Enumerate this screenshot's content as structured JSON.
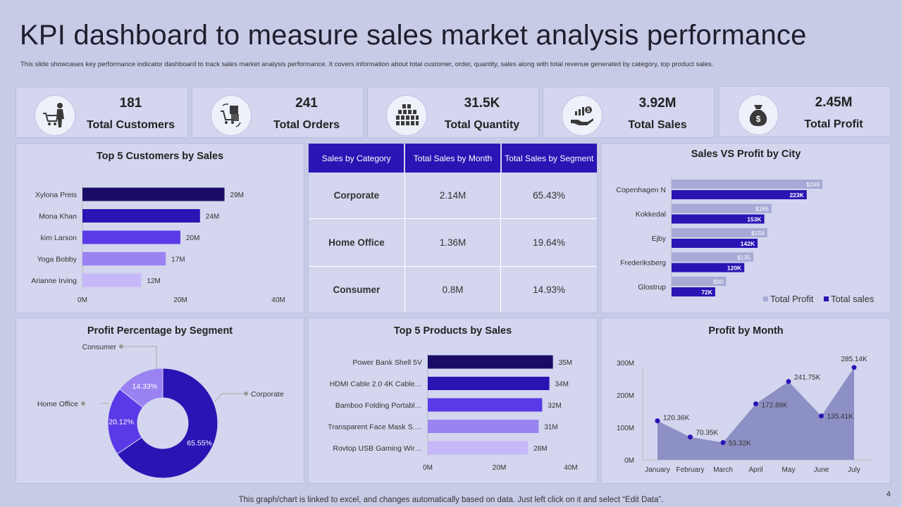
{
  "header": {
    "title": "KPI dashboard to measure sales market analysis performance",
    "subtitle": "This slide showcases key performance indicator dashboard to track sales market analysis performance. It covers information about total customer, order, quantity, sales along  with total revenue generated by category, top product sales."
  },
  "kpis": [
    {
      "value": "181",
      "label": "Total Customers",
      "icon": "customer-cart-icon"
    },
    {
      "value": "241",
      "label": "Total Orders",
      "icon": "orders-boxes-icon"
    },
    {
      "value": "31.5K",
      "label": "Total Quantity",
      "icon": "stacked-boxes-icon"
    },
    {
      "value": "3.92M",
      "label": "Total Sales",
      "icon": "sales-hand-coin-icon"
    },
    {
      "value": "2.45M",
      "label": "Total Profit",
      "icon": "money-bag-icon"
    }
  ],
  "segment_table": {
    "headers": [
      "Sales by Category",
      "Total Sales by Month",
      "Total Sales by Segment"
    ],
    "rows": [
      [
        "Corporate",
        "2.14M",
        "65.43%"
      ],
      [
        "Home Office",
        "1.36M",
        "19.64%"
      ],
      [
        "Consumer",
        "0.8M",
        "14.93%"
      ]
    ]
  },
  "colors": {
    "dark": "#1a0b66",
    "primary": "#2a14b4",
    "medium": "#5a3ae6",
    "light": "#9a82f2",
    "lighter": "#c6b8f8",
    "profit_gray": "#a7aad6",
    "panel": "#d3d6ee",
    "background": "#c8cbe6"
  },
  "chart_data": [
    {
      "id": "top5_customers",
      "type": "bar",
      "orientation": "horizontal",
      "title": "Top 5 Customers by Sales",
      "categories": [
        "Xylona Preis",
        "Mona Khan",
        "kim Larson",
        "Yoga Bobby",
        "Arianne Irving"
      ],
      "values": [
        29,
        24,
        20,
        17,
        12
      ],
      "value_labels": [
        "29M",
        "24M",
        "20M",
        "17M",
        "12M"
      ],
      "xlim": [
        0,
        40
      ],
      "ticks": [
        "0M",
        "20M",
        "40M"
      ]
    },
    {
      "id": "sales_vs_profit_city",
      "type": "bar",
      "orientation": "horizontal",
      "title": "Sales VS Profit by City",
      "categories": [
        "Copenhagen N",
        "Kokkedal",
        "Ejby",
        "Frederiksberg",
        "Glostrup"
      ],
      "series": [
        {
          "name": "Total Profit",
          "values": [
            249,
            165,
            158,
            135,
            90
          ],
          "labels": [
            "$249",
            "$165",
            "$158",
            "$135",
            "$90"
          ]
        },
        {
          "name": "Total sales",
          "values": [
            223,
            153,
            142,
            120,
            72
          ],
          "labels": [
            "223K",
            "153K",
            "142K",
            "120K",
            "72K"
          ]
        }
      ],
      "legend": "bottom-right"
    },
    {
      "id": "profit_by_segment",
      "type": "pie",
      "title": "Profit Percentage by Segment",
      "labels": [
        "Corporate",
        "Home Office",
        "Consumer"
      ],
      "values": [
        65.55,
        20.12,
        14.33
      ],
      "value_labels": [
        "65.55%",
        "20.12%",
        "14.33%"
      ]
    },
    {
      "id": "top5_products",
      "type": "bar",
      "orientation": "horizontal",
      "title": "Top 5 Products by Sales",
      "categories": [
        "Power Bank Shell 5V",
        "HDMI  Cable 2.0 4K Cable…",
        "Bamboo Folding Portabl…",
        "Transparent Face Mask S.…",
        "Rovtop USB Gaming Wir…"
      ],
      "values": [
        35,
        34,
        32,
        31,
        28
      ],
      "value_labels": [
        "35M",
        "34M",
        "32M",
        "31M",
        "28M"
      ],
      "xlim": [
        0,
        40
      ],
      "ticks": [
        "0M",
        "20M",
        "40M"
      ]
    },
    {
      "id": "profit_by_month",
      "type": "area",
      "title": "Profit by Month",
      "x": [
        "January",
        "February",
        "March",
        "April",
        "May",
        "June",
        "July"
      ],
      "values": [
        120.36,
        70.35,
        53.32,
        172.89,
        241.75,
        135.41,
        285.14
      ],
      "value_labels": [
        "120.36K",
        "70.35K",
        "53.32K",
        "172.89K",
        "241.75K",
        "135.41K",
        "285.14K"
      ],
      "ylim": [
        0,
        300
      ],
      "ticks": [
        "0M",
        "100M",
        "200M",
        "300M"
      ]
    }
  ],
  "footer": {
    "note": "This graph/chart is linked to excel,  and changes automatically based on data. Just left click on it and select “Edit Data”.",
    "page": "4"
  }
}
